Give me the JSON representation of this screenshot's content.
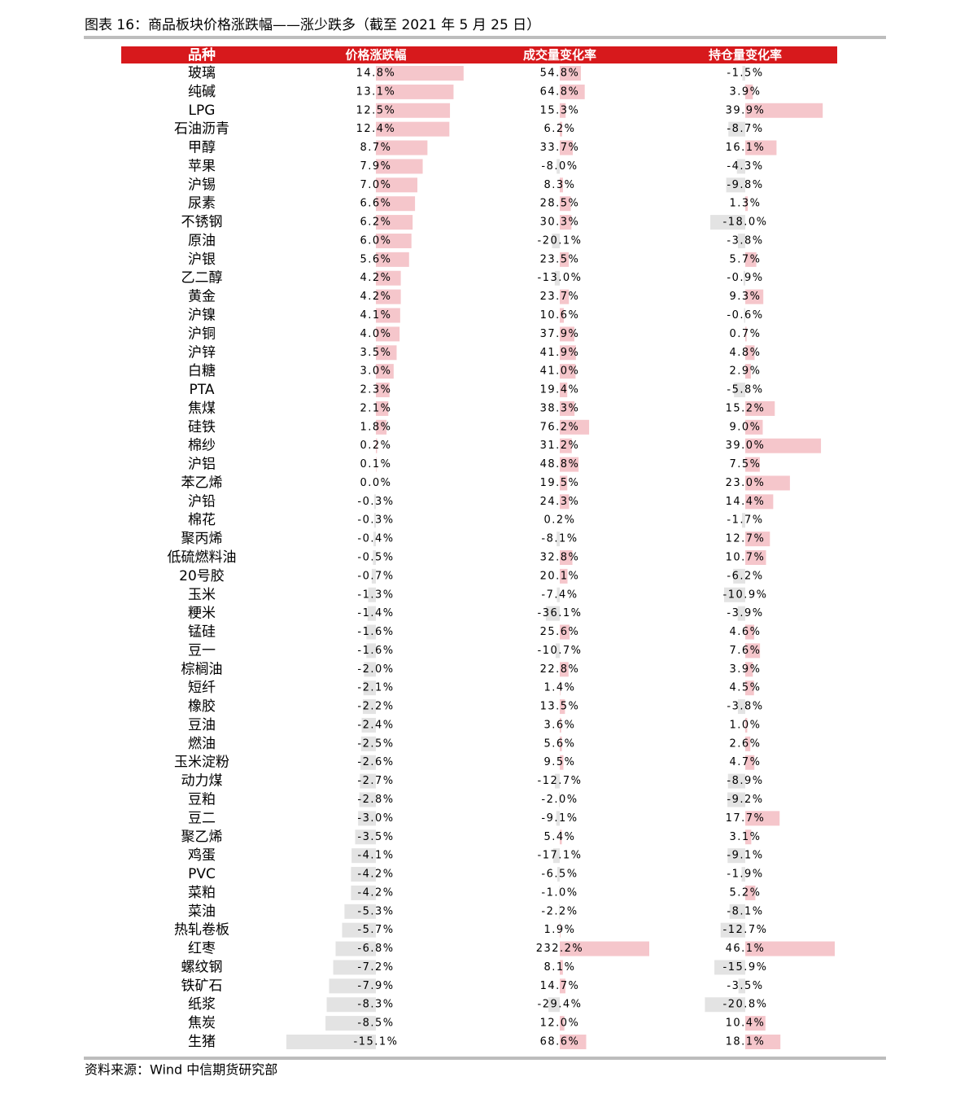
{
  "title": "图表 16：商品板块价格涨跌幅——涨少跌多（截至 2021 年 5 月 25 日）",
  "table": {
    "headers": [
      "品种",
      "价格涨跌幅",
      "成交量变化率",
      "持仓量变化率"
    ],
    "rows": [
      "玻璃",
      "纯碱",
      "LPG",
      "石油沥青",
      "甲醇",
      "苹果",
      "沪锡",
      "尿素",
      "不锈钢",
      "原油",
      "沪银",
      "乙二醇",
      "黄金",
      "沪镍",
      "沪铜",
      "沪锌",
      "白糖",
      "PTA",
      "焦煤",
      "硅铁",
      "棉纱",
      "沪铝",
      "苯乙烯",
      "沪铅",
      "棉花",
      "聚丙烯",
      "低硫燃料油",
      "20号胶",
      "玉米",
      "粳米",
      "锰硅",
      "豆一",
      "棕榈油",
      "短纤",
      "橡胶",
      "豆油",
      "燃油",
      "玉米淀粉",
      "动力煤",
      "豆粕",
      "豆二",
      "聚乙烯",
      "鸡蛋",
      "PVC",
      "菜粕",
      "菜油",
      "热轧卷板",
      "红枣",
      "螺纹钢",
      "铁矿石",
      "纸浆",
      "焦炭",
      "生猪"
    ],
    "columns": [
      {
        "values": [
          14.8,
          13.1,
          12.5,
          12.4,
          8.7,
          7.9,
          7.0,
          6.6,
          6.2,
          6.0,
          5.6,
          4.2,
          4.2,
          4.1,
          4.0,
          3.5,
          3.0,
          2.3,
          2.1,
          1.8,
          0.2,
          0.1,
          0.0,
          -0.3,
          -0.3,
          -0.4,
          -0.5,
          -0.7,
          -1.3,
          -1.4,
          -1.6,
          -1.6,
          -2.0,
          -2.1,
          -2.2,
          -2.4,
          -2.5,
          -2.6,
          -2.7,
          -2.8,
          -3.0,
          -3.5,
          -4.1,
          -4.2,
          -4.2,
          -5.3,
          -5.7,
          -6.8,
          -7.2,
          -7.9,
          -8.3,
          -8.5,
          -15.1
        ],
        "value_labels": [
          "14.8%",
          "13.1%",
          "12.5%",
          "12.4%",
          "8.7%",
          "7.9%",
          "7.0%",
          "6.6%",
          "6.2%",
          "6.0%",
          "5.6%",
          "4.2%",
          "4.2%",
          "4.1%",
          "4.0%",
          "3.5%",
          "3.0%",
          "2.3%",
          "2.1%",
          "1.8%",
          "0.2%",
          "0.1%",
          "0.0%",
          "-0.3%",
          "-0.3%",
          "-0.4%",
          "-0.5%",
          "-0.7%",
          "-1.3%",
          "-1.4%",
          "-1.6%",
          "-1.6%",
          "-2.0%",
          "-2.1%",
          "-2.2%",
          "-2.4%",
          "-2.5%",
          "-2.6%",
          "-2.7%",
          "-2.8%",
          "-3.0%",
          "-3.5%",
          "-4.1%",
          "-4.2%",
          "-4.2%",
          "-5.3%",
          "-5.7%",
          "-6.8%",
          "-7.2%",
          "-7.9%",
          "-8.3%",
          "-8.5%",
          "-15.1%"
        ]
      },
      {
        "values": [
          54.8,
          64.8,
          15.3,
          6.2,
          33.7,
          -8.0,
          8.3,
          28.5,
          30.3,
          -20.1,
          23.5,
          -13.0,
          23.7,
          10.6,
          37.9,
          41.9,
          41.0,
          19.4,
          38.3,
          76.2,
          31.2,
          48.8,
          19.5,
          24.3,
          0.2,
          -8.1,
          32.8,
          20.1,
          -7.4,
          -36.1,
          25.6,
          -10.7,
          22.8,
          1.4,
          13.5,
          3.6,
          5.6,
          9.5,
          -12.7,
          -2.0,
          -9.1,
          5.4,
          -17.1,
          -6.5,
          -1.0,
          -2.2,
          1.9,
          232.2,
          8.1,
          14.7,
          -29.4,
          12.0,
          68.6
        ],
        "value_labels": [
          "54.8%",
          "64.8%",
          "15.3%",
          "6.2%",
          "33.7%",
          "-8.0%",
          "8.3%",
          "28.5%",
          "30.3%",
          "-20.1%",
          "23.5%",
          "-13.0%",
          "23.7%",
          "10.6%",
          "37.9%",
          "41.9%",
          "41.0%",
          "19.4%",
          "38.3%",
          "76.2%",
          "31.2%",
          "48.8%",
          "19.5%",
          "24.3%",
          "0.2%",
          "-8.1%",
          "32.8%",
          "20.1%",
          "-7.4%",
          "-36.1%",
          "25.6%",
          "-10.7%",
          "22.8%",
          "1.4%",
          "13.5%",
          "3.6%",
          "5.6%",
          "9.5%",
          "-12.7%",
          "-2.0%",
          "-9.1%",
          "5.4%",
          "-17.1%",
          "-6.5%",
          "-1.0%",
          "-2.2%",
          "1.9%",
          "232.2%",
          "8.1%",
          "14.7%",
          "-29.4%",
          "12.0%",
          "68.6%"
        ]
      },
      {
        "values": [
          -1.5,
          3.9,
          39.9,
          -8.7,
          16.1,
          -4.3,
          -9.8,
          1.3,
          -18.0,
          -3.8,
          5.7,
          -0.9,
          9.3,
          -0.6,
          0.7,
          4.8,
          2.9,
          -5.8,
          15.2,
          9.0,
          39.0,
          7.5,
          23.0,
          14.4,
          -1.7,
          12.7,
          10.7,
          -6.2,
          -10.9,
          -3.9,
          4.6,
          7.6,
          3.9,
          4.5,
          -3.8,
          1.0,
          2.6,
          4.7,
          -8.9,
          -9.2,
          17.7,
          3.1,
          -9.1,
          -1.9,
          5.2,
          -8.1,
          -12.7,
          46.1,
          -15.9,
          -3.5,
          -20.8,
          10.4,
          18.1
        ],
        "value_labels": [
          "-1.5%",
          "3.9%",
          "39.9%",
          "-8.7%",
          "16.1%",
          "-4.3%",
          "-9.8%",
          "1.3%",
          "-18.0%",
          "-3.8%",
          "5.7%",
          "-0.9%",
          "9.3%",
          "-0.6%",
          "0.7%",
          "4.8%",
          "2.9%",
          "-5.8%",
          "15.2%",
          "9.0%",
          "39.0%",
          "7.5%",
          "23.0%",
          "14.4%",
          "-1.7%",
          "12.7%",
          "10.7%",
          "-6.2%",
          "-10.9%",
          "-3.9%",
          "4.6%",
          "7.6%",
          "3.9%",
          "4.5%",
          "-3.8%",
          "1.0%",
          "2.6%",
          "4.7%",
          "-8.9%",
          "-9.2%",
          "17.7%",
          "3.1%",
          "-9.1%",
          "-1.9%",
          "5.2%",
          "-8.1%",
          "-12.7%",
          "46.1%",
          "-15.9%",
          "-3.5%",
          "-20.8%",
          "10.4%",
          "18.1%"
        ]
      }
    ]
  },
  "source": "资料来源：Wind 中信期货研究部"
}
